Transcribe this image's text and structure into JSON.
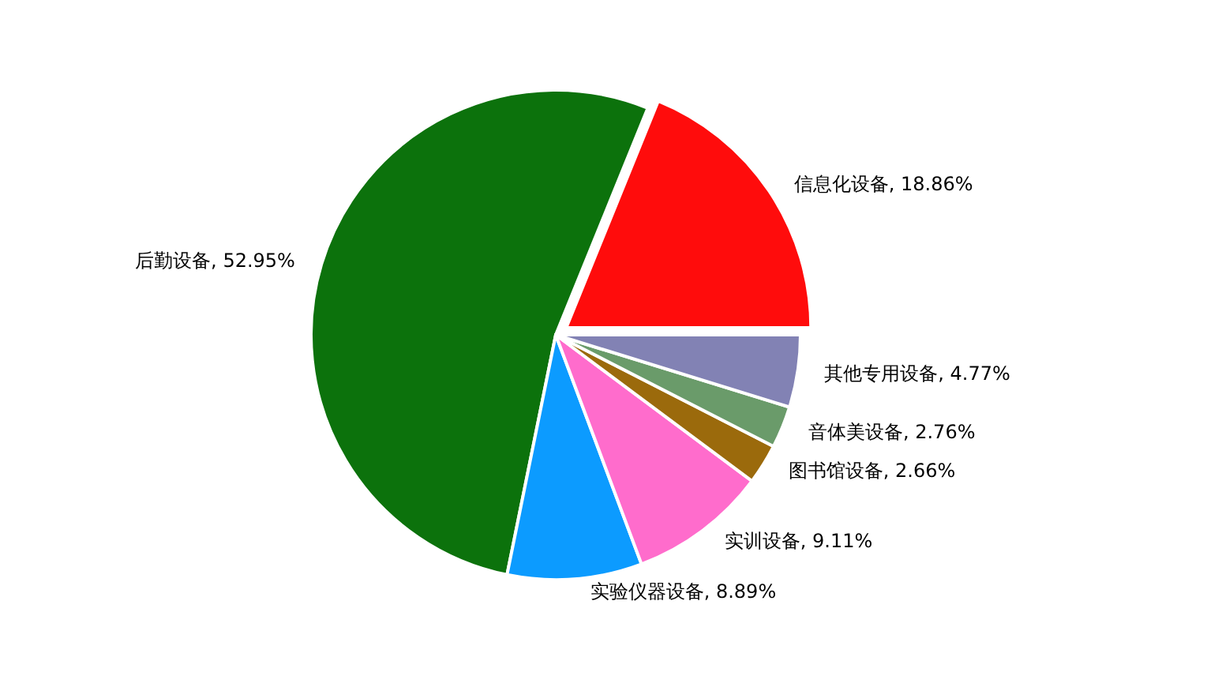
{
  "chart_data": {
    "type": "pie",
    "categories": [
      "信息化设备",
      "后勤设备",
      "实验仪器设备",
      "实训设备",
      "图书馆设备",
      "音体美设备",
      "其他专用设备"
    ],
    "values": [
      18.86,
      52.95,
      8.89,
      9.11,
      2.66,
      2.76,
      4.77
    ],
    "value_labels": [
      "18.86%",
      "52.95%",
      "8.89%",
      "9.11%",
      "2.66%",
      "2.76%",
      "4.77%"
    ],
    "colors": [
      "#ff0c0c",
      "#0c720c",
      "#0c9bff",
      "#ff6ccc",
      "#9b6a0c",
      "#6a9b6a",
      "#8282b4"
    ],
    "legend": false
  }
}
